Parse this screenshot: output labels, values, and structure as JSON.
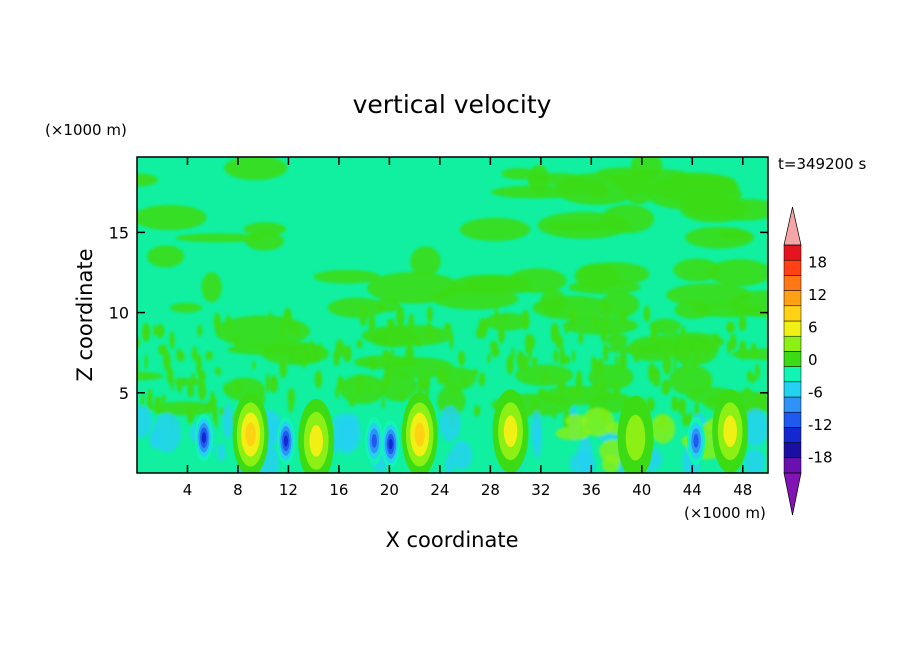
{
  "chart_data": {
    "type": "heatmap",
    "title": "vertical velocity",
    "xlabel": "X coordinate",
    "ylabel": "Z coordinate",
    "x_unit": "(×1000 m)",
    "y_unit": "(×1000 m)",
    "time_label": "t=349200 s",
    "xlim": [
      0,
      50
    ],
    "ylim": [
      0,
      19.7
    ],
    "x_ticks": [
      4,
      8,
      12,
      16,
      20,
      24,
      28,
      32,
      36,
      40,
      44,
      48
    ],
    "y_ticks": [
      5,
      10,
      15
    ],
    "colorbar": {
      "levels": [
        -21,
        -18,
        -15,
        -12,
        -9,
        -6,
        -3,
        0,
        3,
        6,
        9,
        12,
        15,
        18,
        21
      ],
      "tick_labels": [
        "18",
        "12",
        "6",
        "0",
        "-6",
        "-12",
        "-18"
      ],
      "tick_values": [
        18,
        12,
        6,
        0,
        -6,
        -12,
        -18
      ],
      "colors": [
        "#6a0fb0",
        "#1a0fa0",
        "#1428d2",
        "#1e5af0",
        "#2f93f5",
        "#23d2f0",
        "#10f5b4",
        "#3cdc14",
        "#8cf014",
        "#f0f014",
        "#ffd214",
        "#ffa014",
        "#ff7814",
        "#ff4114",
        "#e6141e"
      ],
      "over_color": "#f5a5a5",
      "under_color": "#8214b4"
    },
    "background_color": "#10f0a0",
    "updrafts": [
      {
        "x": 9.0,
        "z": 2.4,
        "w": 10,
        "label": "updraft"
      },
      {
        "x": 14.2,
        "z": 2.0,
        "w": 8,
        "label": "updraft"
      },
      {
        "x": 22.4,
        "z": 2.4,
        "w": 9,
        "label": "updraft"
      },
      {
        "x": 29.6,
        "z": 2.6,
        "w": 8,
        "label": "updraft"
      },
      {
        "x": 39.5,
        "z": 2.2,
        "w": 5,
        "label": "updraft"
      },
      {
        "x": 47.0,
        "z": 2.6,
        "w": 6,
        "label": "updraft"
      }
    ],
    "downdrafts": [
      {
        "x": 5.3,
        "z": 2.2,
        "w": -12,
        "label": "downdraft"
      },
      {
        "x": 11.8,
        "z": 2.0,
        "w": -12,
        "label": "downdraft"
      },
      {
        "x": 18.8,
        "z": 2.0,
        "w": -10,
        "label": "downdraft"
      },
      {
        "x": 20.1,
        "z": 1.8,
        "w": -12,
        "label": "downdraft"
      },
      {
        "x": 44.3,
        "z": 2.0,
        "w": -11,
        "label": "downdraft"
      }
    ]
  }
}
